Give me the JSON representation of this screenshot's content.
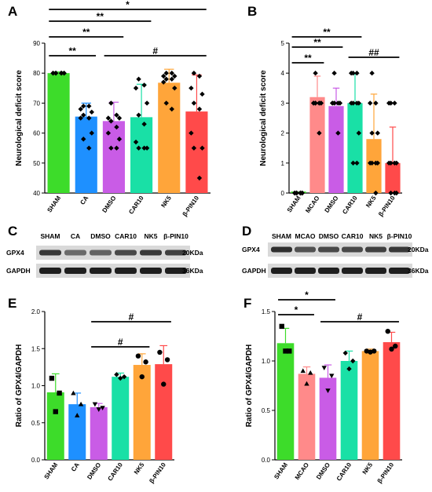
{
  "chart_data": [
    {
      "panel": "A",
      "type": "bar",
      "ylabel": "Neurological deficit score",
      "ylim": [
        40,
        90
      ],
      "yticks": [
        40,
        50,
        60,
        70,
        80,
        90
      ],
      "categories": [
        "SHAM",
        "CA",
        "DMSO",
        "CAR10",
        "NK5",
        "β-PIN10"
      ],
      "colors": [
        "#3ddc2a",
        "#1e90ff",
        "#c95ce6",
        "#19e0a6",
        "#ffa53a",
        "#ff4a4a"
      ],
      "values": [
        80,
        65.5,
        64,
        65.3,
        76.8,
        67.2
      ],
      "errors": [
        0.4,
        4.5,
        6.3,
        11,
        4.5,
        12.2
      ],
      "points": [
        [
          80,
          80,
          80,
          80,
          80,
          80,
          80,
          80,
          80,
          80
        ],
        [
          69,
          69,
          68,
          67,
          66,
          65,
          65,
          60,
          58,
          55
        ],
        [
          70,
          66,
          65,
          65,
          64,
          62,
          60,
          58,
          55,
          55
        ],
        [
          78,
          76,
          75,
          70,
          66,
          63,
          57,
          55,
          55,
          55
        ],
        [
          80,
          80,
          79,
          79,
          78,
          78,
          77,
          75,
          70,
          68
        ],
        [
          80,
          79,
          75,
          73,
          70,
          68,
          60,
          55,
          55,
          45
        ]
      ],
      "marker": "diamond",
      "brackets": [
        {
          "from": 0,
          "to": 5,
          "label": "*"
        },
        {
          "from": 0,
          "to": 3,
          "label": "**"
        },
        {
          "from": 0,
          "to": 2,
          "label": "**"
        },
        {
          "from": 0,
          "to": 1,
          "label": "**"
        },
        {
          "from": 2,
          "to": 5,
          "label": "#"
        }
      ]
    },
    {
      "panel": "B",
      "type": "bar",
      "ylabel": "Neurological deficit score",
      "ylim": [
        0,
        5
      ],
      "yticks": [
        0,
        1,
        2,
        3,
        4,
        5
      ],
      "categories": [
        "SHAM",
        "MCAO",
        "DMSO",
        "CAR10",
        "NK5",
        "β-PIN10"
      ],
      "colors": [
        "#3ddc2a",
        "#ff8a8a",
        "#c95ce6",
        "#19e0a6",
        "#ffa53a",
        "#ff4a4a"
      ],
      "values": [
        0.05,
        3.2,
        2.9,
        3.0,
        1.8,
        1.0
      ],
      "errors": [
        0,
        0.7,
        0.6,
        1.0,
        1.5,
        1.2
      ],
      "points": [
        [
          0,
          0,
          0,
          0,
          0,
          0,
          0,
          0,
          0,
          0
        ],
        [
          4,
          3,
          3,
          3,
          3,
          3,
          3,
          3,
          3,
          2
        ],
        [
          4,
          3,
          3,
          3,
          3,
          3,
          3,
          3,
          3,
          2
        ],
        [
          4,
          4,
          4,
          3,
          3,
          3,
          3,
          2,
          1,
          1
        ],
        [
          4,
          3,
          3,
          2,
          2,
          1,
          1,
          1,
          1,
          0
        ],
        [
          3,
          3,
          3,
          1,
          1,
          1,
          1,
          0,
          0,
          0
        ]
      ],
      "marker": "diamond",
      "brackets": [
        {
          "from": 0,
          "to": 3,
          "label": "**"
        },
        {
          "from": 0,
          "to": 2,
          "label": "**"
        },
        {
          "from": 0,
          "to": 1,
          "label": "**"
        },
        {
          "from": 3,
          "to": 5,
          "label": "##"
        }
      ]
    },
    {
      "panel": "E",
      "type": "bar",
      "ylabel": "Ratio of GPX4/GAPDH",
      "ylim": [
        0,
        2.0
      ],
      "yticks": [
        0.0,
        0.5,
        1.0,
        1.5,
        2.0
      ],
      "tick_decimals": 1,
      "categories": [
        "SHAM",
        "CA",
        "DMSO",
        "CAR10",
        "NK5",
        "β-PIN10"
      ],
      "colors": [
        "#3ddc2a",
        "#1e90ff",
        "#c95ce6",
        "#19e0a6",
        "#ffa53a",
        "#ff4a4a"
      ],
      "values": [
        0.91,
        0.75,
        0.71,
        1.12,
        1.28,
        1.29
      ],
      "errors": [
        0.25,
        0.15,
        0.05,
        0.05,
        0.15,
        0.25
      ],
      "points": [
        [
          1.1,
          0.9,
          0.65
        ],
        [
          0.9,
          0.75,
          0.6
        ],
        [
          0.75,
          0.7,
          0.68
        ],
        [
          1.15,
          1.12,
          1.1
        ],
        [
          1.4,
          1.32,
          1.12
        ],
        [
          1.45,
          1.35,
          1.02
        ]
      ],
      "marker_cycle": [
        "square",
        "triangle",
        "triangle-down",
        "diamond",
        "circle",
        "circle"
      ],
      "brackets": [
        {
          "from": 2,
          "to": 5,
          "label": "#"
        },
        {
          "from": 2,
          "to": 4,
          "label": "#"
        }
      ]
    },
    {
      "panel": "F",
      "type": "bar",
      "ylabel": "Ratio of GPX4/GAPDH",
      "ylim": [
        0,
        1.5
      ],
      "yticks": [
        0.0,
        0.5,
        1.0,
        1.5
      ],
      "tick_decimals": 1,
      "categories": [
        "SHAM",
        "MCAO",
        "DMSO",
        "CAR10",
        "NK5",
        "β-PIN10"
      ],
      "colors": [
        "#3ddc2a",
        "#ff8a8a",
        "#c95ce6",
        "#19e0a6",
        "#ffa53a",
        "#ff4a4a"
      ],
      "values": [
        1.18,
        0.87,
        0.83,
        1.0,
        1.1,
        1.19
      ],
      "errors": [
        0.15,
        0.07,
        0.13,
        0.1,
        0.02,
        0.1
      ],
      "points": [
        [
          1.35,
          1.1,
          1.1
        ],
        [
          0.9,
          0.88,
          0.77
        ],
        [
          0.93,
          0.85,
          0.7
        ],
        [
          1.08,
          1.0,
          0.92
        ],
        [
          1.1,
          1.1,
          1.09
        ],
        [
          1.3,
          1.15,
          1.12
        ]
      ],
      "marker_cycle": [
        "square",
        "triangle",
        "triangle-down",
        "diamond",
        "circle",
        "circle"
      ],
      "brackets": [
        {
          "from": 0,
          "to": 2,
          "label": "*"
        },
        {
          "from": 0,
          "to": 1,
          "label": "*"
        },
        {
          "from": 2,
          "to": 5,
          "label": "#"
        }
      ]
    }
  ],
  "western_blots": [
    {
      "panel": "C",
      "lanes": [
        "SHAM",
        "CA",
        "DMSO",
        "CAR10",
        "NK5",
        "β-PIN10"
      ],
      "rows": [
        {
          "protein": "GPX4",
          "kda": "20KDa",
          "intensity": [
            0.85,
            0.55,
            0.6,
            0.75,
            0.85,
            0.8
          ]
        },
        {
          "protein": "GAPDH",
          "kda": "36KDa",
          "intensity": [
            1,
            1,
            1,
            1,
            1,
            1
          ]
        }
      ]
    },
    {
      "panel": "D",
      "lanes": [
        "SHAM",
        "MCAO",
        "DMSO",
        "CAR10",
        "NK5",
        "β-PIN10"
      ],
      "rows": [
        {
          "protein": "GPX4",
          "kda": "20KDa",
          "intensity": [
            0.9,
            0.7,
            0.75,
            0.75,
            0.8,
            0.85
          ]
        },
        {
          "protein": "GAPDH",
          "kda": "36KDa",
          "intensity": [
            1,
            1,
            1,
            1,
            1,
            1
          ]
        }
      ]
    }
  ]
}
